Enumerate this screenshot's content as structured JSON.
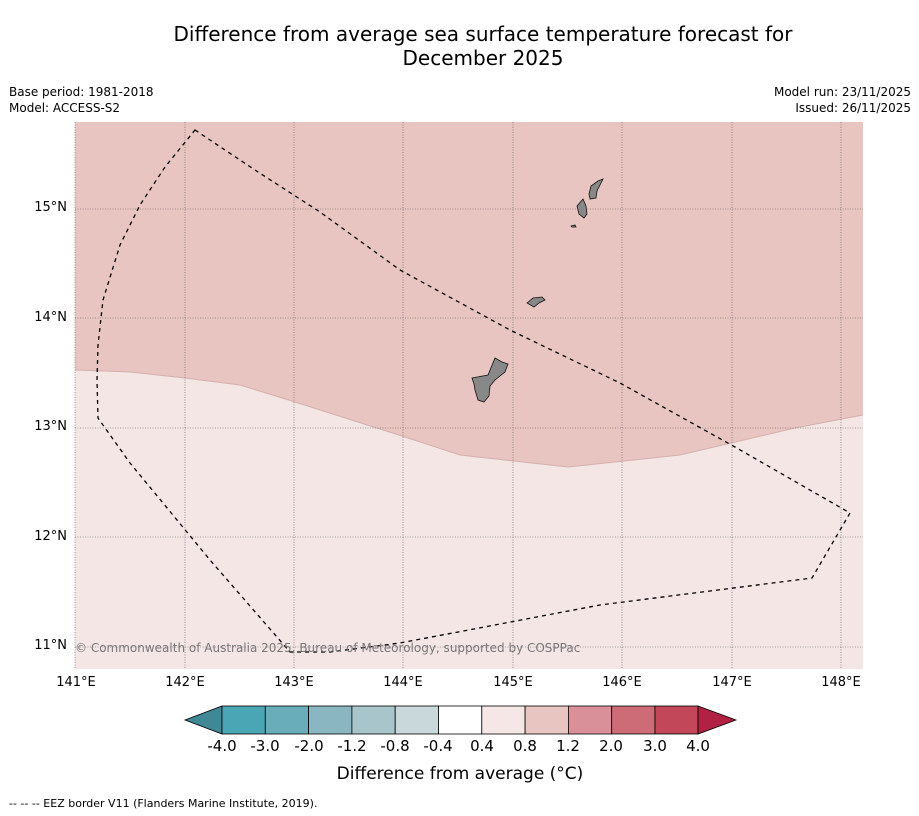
{
  "title": {
    "line1": "Difference from average sea surface temperature forecast for",
    "line2": "December 2025"
  },
  "meta": {
    "base_period": "Base period: 1981-2018",
    "model": "Model: ACCESS-S2",
    "model_run": "Model run: 23/11/2025",
    "issued": "Issued: 26/11/2025"
  },
  "map": {
    "lat_labels": [
      "15°N",
      "14°N",
      "13°N",
      "12°N",
      "11°N"
    ],
    "lon_labels": [
      "141°E",
      "142°E",
      "143°E",
      "144°E",
      "145°E",
      "146°E",
      "147°E",
      "148°E"
    ],
    "copyright": "© Commonwealth of Australia 2025, Bureau of Meteorology, supported by COSPPac",
    "anomaly_regions": [
      {
        "range": "0.8 to 1.2",
        "color": "#e8c5c1",
        "location": "north"
      },
      {
        "range": "0.4 to 0.8",
        "color": "#f4e6e5",
        "location": "south"
      }
    ]
  },
  "colorbar": {
    "title": "Difference from average (°C)",
    "ticks": [
      "-4.0",
      "-3.0",
      "-2.0",
      "-1.2",
      "-0.8",
      "-0.4",
      "0.4",
      "0.8",
      "1.2",
      "2.0",
      "3.0",
      "4.0"
    ],
    "colors": [
      "#408896",
      "#4aa5b5",
      "#6aadba",
      "#8ab6c2",
      "#a8c5cb",
      "#c9d9db",
      "#ffffff",
      "#f5e7e6",
      "#e8c5c1",
      "#d99098",
      "#cd6b76",
      "#c24758",
      "#b12143"
    ]
  },
  "footer": {
    "legend": "--  --  -- EEZ border V11 (Flanders Marine Institute, 2019)."
  }
}
